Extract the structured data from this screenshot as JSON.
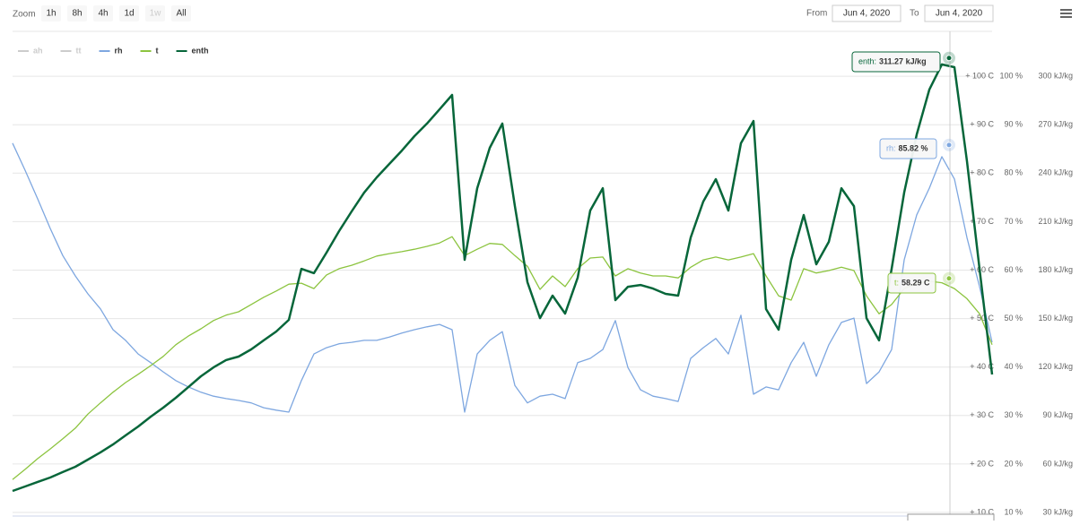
{
  "range_selector": {
    "zoom_label": "Zoom",
    "buttons": [
      {
        "label": "1h"
      },
      {
        "label": "8h"
      },
      {
        "label": "4h"
      },
      {
        "label": "1d"
      },
      {
        "label": "1w",
        "disabled": true
      },
      {
        "label": "All"
      }
    ],
    "from_label": "From",
    "from": "Jun 4, 2020",
    "to_label": "To",
    "to": "Jun 4, 2020"
  },
  "chart_data": {
    "type": "line",
    "ylim": [
      10,
      110
    ],
    "yticks": [
      {
        "value": 10,
        "label": "+ 10 C"
      },
      {
        "value": 20,
        "label": "+ 20 C"
      },
      {
        "value": 30,
        "label": "+ 30 C"
      },
      {
        "value": 40,
        "label": "+ 40 C"
      },
      {
        "value": 50,
        "label": "+ 50 C"
      },
      {
        "value": 60,
        "label": "+ 60 C"
      },
      {
        "value": 70,
        "label": "+ 70 C"
      },
      {
        "value": 80,
        "label": "+ 80 C"
      },
      {
        "value": 90,
        "label": "+ 90 C"
      },
      {
        "value": 100,
        "label": "+ 100 C"
      }
    ],
    "y2lim": [
      10,
      110
    ],
    "y2ticks": [
      {
        "value": 10,
        "label": "10 %"
      },
      {
        "value": 20,
        "label": "20 %"
      },
      {
        "value": 30,
        "label": "30 %"
      },
      {
        "value": 40,
        "label": "40 %"
      },
      {
        "value": 50,
        "label": "50 %"
      },
      {
        "value": 60,
        "label": "60 %"
      },
      {
        "value": 70,
        "label": "70 %"
      },
      {
        "value": 80,
        "label": "80 %"
      },
      {
        "value": 90,
        "label": "90 %"
      },
      {
        "value": 100,
        "label": "100 %"
      }
    ],
    "y3lim": [
      30,
      330
    ],
    "y3ticks": [
      {
        "value": 30,
        "label": "30 kJ/kg"
      },
      {
        "value": 60,
        "label": "60 kJ/kg"
      },
      {
        "value": 90,
        "label": "90 kJ/kg"
      },
      {
        "value": 120,
        "label": "120 kJ/kg"
      },
      {
        "value": 150,
        "label": "150 kJ/kg"
      },
      {
        "value": 180,
        "label": "180 kJ/kg"
      },
      {
        "value": 210,
        "label": "210 kJ/kg"
      },
      {
        "value": 240,
        "label": "240 kJ/kg"
      },
      {
        "value": 270,
        "label": "270 kJ/kg"
      },
      {
        "value": 300,
        "label": "300 kJ/kg"
      }
    ],
    "grid": true,
    "series": [
      {
        "name": "ah",
        "color": "#cccccc",
        "visible": false
      },
      {
        "name": "tt",
        "color": "#cccccc",
        "visible": false
      },
      {
        "name": "rh",
        "color": "#7ea7e0",
        "axis": "y2",
        "values": [
          86.2,
          80.6,
          74.7,
          68.6,
          63.0,
          58.8,
          55.1,
          52.0,
          47.7,
          45.5,
          42.7,
          40.9,
          39.0,
          37.2,
          35.9,
          34.8,
          34.0,
          33.5,
          33.1,
          32.6,
          31.6,
          31.1,
          30.7,
          37.2,
          42.7,
          44.0,
          44.8,
          45.1,
          45.5,
          45.5,
          46.2,
          47.0,
          47.7,
          48.3,
          48.8,
          47.7,
          30.7,
          42.7,
          45.5,
          47.3,
          36.2,
          32.6,
          34.0,
          34.4,
          33.5,
          40.9,
          41.8,
          43.6,
          49.6,
          39.9,
          35.3,
          34.0,
          33.5,
          32.9,
          41.8,
          44.0,
          45.9,
          42.7,
          50.7,
          34.4,
          35.9,
          35.3,
          40.9,
          45.1,
          38.1,
          44.6,
          49.2,
          50.1,
          36.6,
          39.0,
          43.6,
          62.1,
          71.4,
          76.9,
          83.4,
          78.8,
          66.7,
          56.6,
          45.1
        ],
        "tooltip": {
          "key": "rh:",
          "value": 85.82,
          "label": "85.82 %"
        }
      },
      {
        "name": "t",
        "color": "#8cc43f",
        "axis": "y",
        "values": [
          16.8,
          18.9,
          21.1,
          23.1,
          25.2,
          27.4,
          30.3,
          32.6,
          34.8,
          36.8,
          38.5,
          40.3,
          42.2,
          44.6,
          46.4,
          47.9,
          49.6,
          50.7,
          51.4,
          52.9,
          54.4,
          55.7,
          57.1,
          57.3,
          56.2,
          59.0,
          60.3,
          61.0,
          61.9,
          62.9,
          63.4,
          63.8,
          64.3,
          64.9,
          65.6,
          66.9,
          63.0,
          64.3,
          65.5,
          65.3,
          63.0,
          60.8,
          56.0,
          58.8,
          56.6,
          60.3,
          62.5,
          62.7,
          58.8,
          60.3,
          59.4,
          58.8,
          58.8,
          58.4,
          60.6,
          62.1,
          62.7,
          62.1,
          62.7,
          63.4,
          58.8,
          54.7,
          53.8,
          60.3,
          59.4,
          59.9,
          60.6,
          59.9,
          54.7,
          51.0,
          52.9,
          56.2,
          57.3,
          57.7,
          57.4,
          56.2,
          54.1,
          51.0,
          44.6
        ],
        "tooltip": {
          "key": "t:",
          "value": 58.29,
          "label": "58.29 C"
        }
      },
      {
        "name": "enth",
        "color": "#07663a",
        "axis": "y3",
        "values": [
          43.3,
          46.1,
          48.9,
          51.6,
          55.0,
          58.3,
          62.7,
          67.2,
          72.1,
          77.7,
          83.2,
          89.3,
          94.9,
          101.0,
          107.6,
          114.3,
          119.8,
          124.3,
          126.5,
          130.9,
          136.5,
          142.0,
          149.2,
          180.8,
          178.1,
          190.8,
          204.1,
          216.3,
          228.0,
          237.4,
          245.7,
          254.0,
          262.9,
          270.7,
          279.5,
          288.4,
          186.4,
          230.7,
          255.7,
          270.7,
          219.6,
          172.5,
          150.3,
          164.2,
          153.1,
          175.3,
          216.9,
          230.7,
          161.4,
          169.7,
          170.8,
          168.6,
          165.3,
          164.2,
          200.2,
          222.4,
          236.3,
          216.9,
          258.5,
          272.3,
          155.9,
          143.1,
          186.4,
          214.1,
          183.6,
          197.5,
          230.7,
          219.6,
          150.3,
          136.5,
          180.8,
          228.0,
          264.0,
          291.7,
          307.3,
          305.6,
          247.4,
          180.8,
          115.4
        ],
        "tooltip": {
          "key": "enth:",
          "value": 311.27,
          "label": "311.27 kJ/kg"
        }
      }
    ]
  }
}
